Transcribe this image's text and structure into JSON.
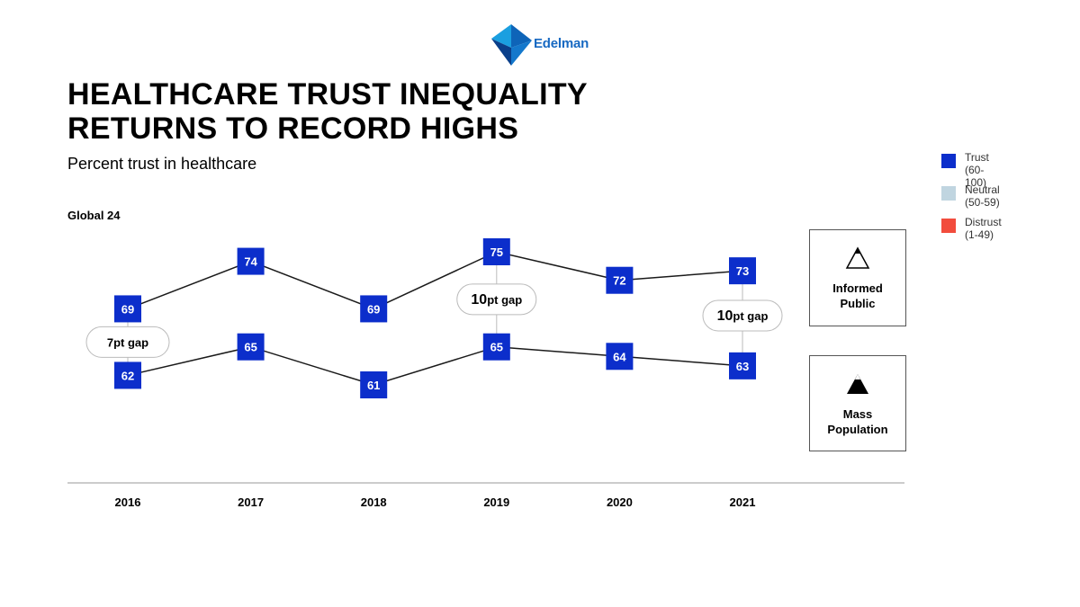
{
  "brand": {
    "name": "Edelman",
    "color": "#1769c2"
  },
  "title_lines": [
    "HEALTHCARE TRUST INEQUALITY",
    "RETURNS TO RECORD HIGHS"
  ],
  "subtitle": "Percent trust in healthcare",
  "region_label": "Global 24",
  "legend": [
    {
      "label": "Trust",
      "range": "(60-100)",
      "color": "#0c2ecb"
    },
    {
      "label": "Neutral",
      "range": "(50-59)",
      "color": "#c0d5e0"
    },
    {
      "label": "Distrust",
      "range": "(1-49)",
      "color": "#f24c3d"
    }
  ],
  "segments": {
    "informed": {
      "line1": "Informed",
      "line2": "Public",
      "icon": "triangle-outline-icon"
    },
    "mass": {
      "line1": "Mass",
      "line2": "Population",
      "icon": "triangle-filled-icon"
    }
  },
  "chart_data": {
    "type": "line",
    "title": "HEALTHCARE TRUST INEQUALITY RETURNS TO RECORD HIGHS",
    "subtitle": "Percent trust in healthcare",
    "categories": [
      "2016",
      "2017",
      "2018",
      "2019",
      "2020",
      "2021"
    ],
    "series": [
      {
        "name": "Informed Public",
        "values": [
          69,
          74,
          69,
          75,
          72,
          73
        ]
      },
      {
        "name": "Mass Population",
        "values": [
          62,
          65,
          61,
          65,
          64,
          63
        ]
      }
    ],
    "gap_annotations": [
      {
        "year": "2016",
        "number": "7",
        "suffix": "pt gap"
      },
      {
        "year": "2019",
        "number": "10",
        "suffix": "pt gap"
      },
      {
        "year": "2021",
        "number": "10",
        "suffix": "pt gap"
      }
    ],
    "marker_color": "#0c2ecb",
    "ylim": [
      55,
      80
    ],
    "grid": false,
    "legend_position": "right"
  }
}
